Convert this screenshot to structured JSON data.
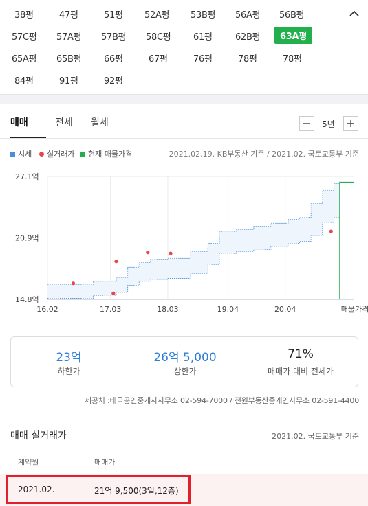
{
  "sizes": [
    {
      "label": "38평",
      "active": false
    },
    {
      "label": "47평",
      "active": false
    },
    {
      "label": "51평",
      "active": false
    },
    {
      "label": "52A평",
      "active": false
    },
    {
      "label": "53B평",
      "active": false
    },
    {
      "label": "56A평",
      "active": false
    },
    {
      "label": "56B평",
      "active": false
    },
    {
      "label": "57C평",
      "active": false
    },
    {
      "label": "57A평",
      "active": false
    },
    {
      "label": "57B평",
      "active": false
    },
    {
      "label": "58C평",
      "active": false
    },
    {
      "label": "61평",
      "active": false
    },
    {
      "label": "62B평",
      "active": false
    },
    {
      "label": "63A평",
      "active": true
    },
    {
      "label": "65A평",
      "active": false
    },
    {
      "label": "65B평",
      "active": false
    },
    {
      "label": "66평",
      "active": false
    },
    {
      "label": "67평",
      "active": false
    },
    {
      "label": "76평",
      "active": false
    },
    {
      "label": "78평",
      "active": false
    },
    {
      "label": "78평",
      "active": false
    },
    {
      "label": "84평",
      "active": false
    },
    {
      "label": "91평",
      "active": false
    },
    {
      "label": "92평",
      "active": false
    }
  ],
  "tabs": [
    {
      "label": "매매",
      "active": true
    },
    {
      "label": "전세",
      "active": false
    },
    {
      "label": "월세",
      "active": false
    }
  ],
  "period": {
    "minus": "−",
    "label": "5년",
    "plus": "+"
  },
  "legend": [
    {
      "label": "시세",
      "color": "#4a90d9",
      "shape": "square"
    },
    {
      "label": "실거래가",
      "color": "#e8454c",
      "shape": "dot"
    },
    {
      "label": "현재 매물가격",
      "color": "#21b04b",
      "shape": "square"
    }
  ],
  "source_note": "2021.02.19. KB부동산 기준 / 2021.02. 국토교통부 기준",
  "chart_data": {
    "type": "line",
    "y_ticks": [
      "27.1억",
      "20.9억",
      "14.8억"
    ],
    "ylim": [
      14.8,
      27.1
    ],
    "x_ticks": [
      "16.02",
      "17.03",
      "18.03",
      "19.04",
      "20.04"
    ],
    "x_end_label": "매물가격",
    "series": [
      {
        "name": "상한",
        "x": [
          2016.0,
          2016.8,
          2017.2,
          2017.4,
          2017.6,
          2017.8,
          2018.1,
          2018.3,
          2018.5,
          2018.8,
          2019.0,
          2019.3,
          2019.6,
          2019.9,
          2020.2,
          2020.4,
          2020.6,
          2020.8,
          2021.0,
          2021.1
        ],
        "y": [
          16.3,
          16.6,
          17.0,
          18.0,
          18.5,
          18.8,
          18.9,
          18.9,
          19.6,
          20.4,
          21.6,
          21.8,
          22.1,
          22.4,
          22.8,
          23.0,
          24.4,
          25.7,
          26.4,
          26.6
        ]
      },
      {
        "name": "하한",
        "x": [
          2016.0,
          2016.8,
          2017.2,
          2017.4,
          2017.6,
          2017.8,
          2018.1,
          2018.3,
          2018.5,
          2018.8,
          2019.0,
          2019.3,
          2019.6,
          2019.9,
          2020.2,
          2020.4,
          2020.6,
          2020.8,
          2021.0,
          2021.1
        ],
        "y": [
          14.9,
          15.2,
          15.5,
          16.2,
          16.6,
          16.8,
          16.9,
          16.9,
          17.4,
          18.3,
          19.4,
          19.6,
          19.8,
          20.1,
          20.4,
          20.6,
          21.2,
          22.5,
          23.0,
          23.2
        ]
      }
    ],
    "points": [
      {
        "x": 2016.45,
        "y": 16.4
      },
      {
        "x": 2017.2,
        "y": 18.6
      },
      {
        "x": 2017.15,
        "y": 15.4
      },
      {
        "x": 2017.75,
        "y": 19.5
      },
      {
        "x": 2018.15,
        "y": 19.4
      },
      {
        "x": 2020.95,
        "y": 21.6
      }
    ],
    "current_listing": {
      "y": 26.5
    }
  },
  "summary": [
    {
      "value": "23억",
      "label": "하한가",
      "color": "blue"
    },
    {
      "value": "26억 5,000",
      "label": "상한가",
      "color": "blue"
    },
    {
      "value": "71%",
      "label": "매매가 대비 전세가",
      "color": "dark"
    }
  ],
  "provider": "제공처 :태극공인중개사사무소 02-594-7000 / 전원부동산중개인사무소 02-591-4400",
  "transactions": {
    "title": "매매 실거래가",
    "source": "2021.02. 국토교통부 기준",
    "headers": [
      "계약월",
      "매매가"
    ],
    "rows": [
      {
        "month": "2021.02.",
        "price": "21억 9,500(3일,12층)"
      }
    ]
  }
}
